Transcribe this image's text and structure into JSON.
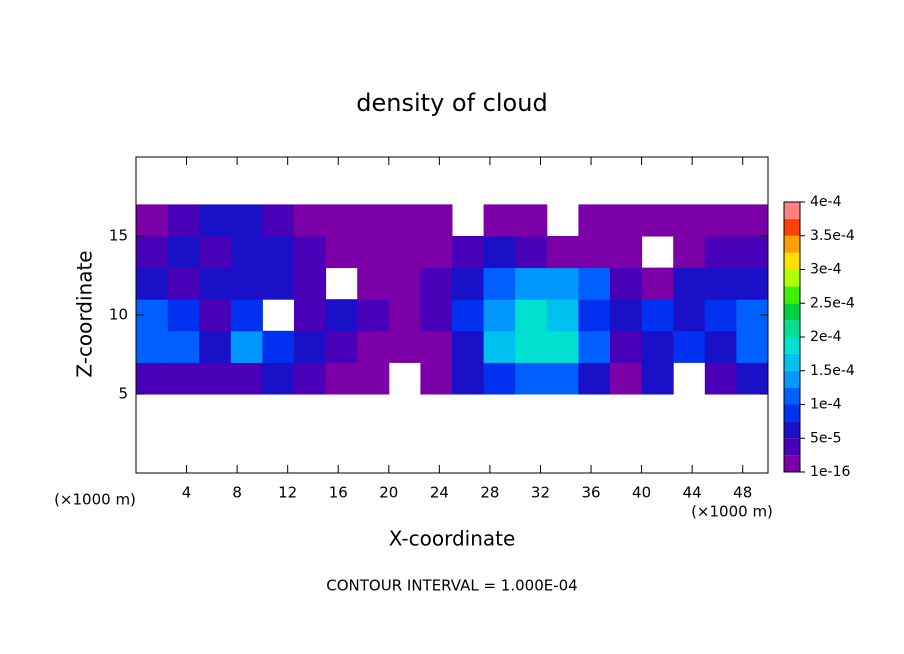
{
  "chart_data": {
    "type": "contour",
    "title": "density of cloud",
    "x_label": "X-coordinate",
    "y_label": "Z-coordinate",
    "x_unit": "(×1000 m)",
    "footer": "CONTOUR INTERVAL = 1.000E-04",
    "xlim": [
      0,
      50
    ],
    "ylim": [
      0,
      20
    ],
    "xticks": [
      4,
      8,
      12,
      16,
      20,
      24,
      28,
      32,
      36,
      40,
      44,
      48
    ],
    "yticks": [
      5,
      10,
      15
    ],
    "x_edges": [
      0,
      2.5,
      5,
      7.5,
      10,
      12.5,
      15,
      17.5,
      20,
      22.5,
      25,
      27.5,
      30,
      32.5,
      35,
      37.5,
      40,
      42.5,
      45,
      47.5,
      50
    ],
    "z_edges": [
      5,
      7,
      9,
      11,
      13,
      15,
      17
    ],
    "z": [
      [
        4e-05,
        4e-05,
        3e-05,
        4e-05,
        5e-05,
        3e-05,
        2e-05,
        1e-05,
        null,
        5e-06,
        6e-05,
        9e-05,
        0.00011,
        0.00011,
        6e-05,
        2e-05,
        7e-05,
        null,
        4e-05,
        7e-05
      ],
      [
        0.00012,
        0.0001,
        6e-05,
        0.00013,
        8e-05,
        5e-05,
        3e-05,
        2e-05,
        1e-05,
        1e-05,
        7e-05,
        0.00016,
        0.00019,
        0.00018,
        0.00012,
        4e-05,
        6e-05,
        8e-05,
        5e-05,
        0.00011
      ],
      [
        0.00012,
        8e-05,
        4e-05,
        8e-05,
        null,
        4e-05,
        6e-05,
        3e-05,
        1e-05,
        4e-05,
        8e-05,
        0.00014,
        0.00019,
        0.00015,
        9e-05,
        6e-05,
        8e-05,
        5e-05,
        8e-05,
        0.0001
      ],
      [
        6e-05,
        4e-05,
        5e-05,
        7e-05,
        5e-05,
        3e-05,
        null,
        1e-05,
        2e-05,
        4e-05,
        6e-05,
        0.00011,
        0.00013,
        0.00013,
        0.0001,
        4e-05,
        2e-05,
        5e-05,
        6e-05,
        6e-05
      ],
      [
        3e-05,
        6e-05,
        4e-05,
        7e-05,
        5e-05,
        3e-05,
        1e-05,
        1e-05,
        1e-05,
        1e-05,
        3e-05,
        5e-05,
        3e-05,
        2e-05,
        1e-05,
        1e-05,
        null,
        1e-05,
        4e-05,
        4e-05
      ],
      [
        2e-05,
        4e-05,
        5e-05,
        6e-05,
        4e-05,
        1e-05,
        1e-05,
        1e-05,
        1e-05,
        1e-05,
        null,
        2e-05,
        1e-05,
        null,
        1e-05,
        1e-05,
        1e-05,
        1e-05,
        2e-05,
        1e-05
      ]
    ],
    "levels": [
      1e-16,
      2.5e-05,
      5e-05,
      7.5e-05,
      0.0001,
      0.000125,
      0.00015,
      0.000175,
      0.0002,
      0.000225,
      0.00025,
      0.000275,
      0.0003,
      0.000325,
      0.00035,
      0.000375,
      0.0004
    ],
    "colors": [
      "#7b00a8",
      "#4a00b8",
      "#1a10c8",
      "#0030f0",
      "#0060ff",
      "#0098ff",
      "#00c0f0",
      "#00e0d0",
      "#00e090",
      "#00d040",
      "#40f000",
      "#b0ff00",
      "#ffe000",
      "#ffa000",
      "#ff4000",
      "#ff8080"
    ],
    "colorbar_ticks": [
      1e-16,
      {
        "value": 5e-05,
        "label": "5e-5"
      },
      {
        "value": 0.0001,
        "label": "1e-4"
      },
      {
        "value": 0.00015,
        "label": "1.5e-4"
      },
      {
        "value": 0.0002,
        "label": "2e-4"
      },
      {
        "value": 0.00025,
        "label": "2.5e-4"
      },
      {
        "value": 0.0003,
        "label": "3e-4"
      },
      {
        "value": 0.00035,
        "label": "3.5e-4"
      },
      {
        "value": 0.0004,
        "label": "4e-4"
      }
    ]
  }
}
